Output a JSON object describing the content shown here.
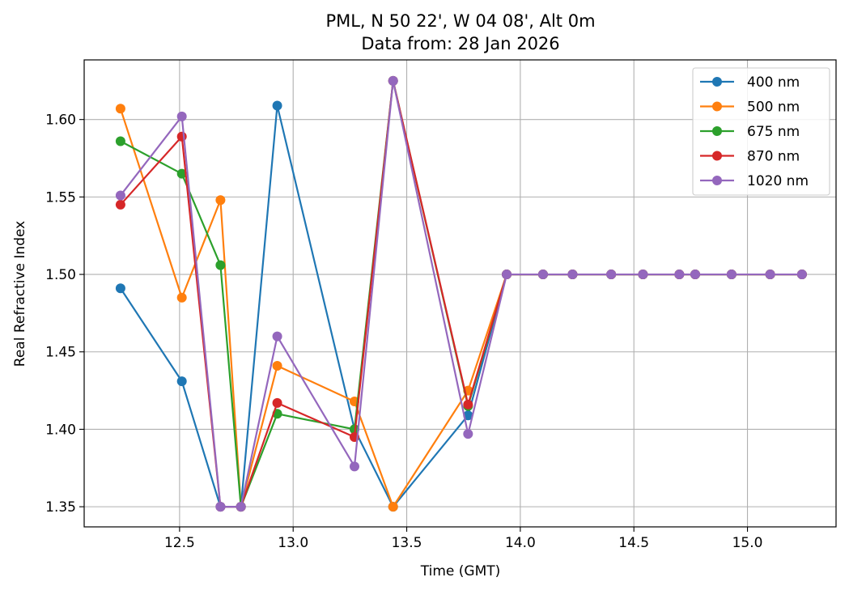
{
  "chart_data": {
    "type": "line",
    "title": "PML, N 50 22', W 04 08', Alt 0m",
    "subtitle": "Data from: 28 Jan 2026",
    "xlabel": "Time (GMT)",
    "ylabel": "Real Refractive Index",
    "xlim": [
      12.08,
      15.39
    ],
    "ylim": [
      1.337,
      1.6385
    ],
    "xticks": [
      12.5,
      13.0,
      13.5,
      14.0,
      14.5,
      15.0
    ],
    "xtick_labels": [
      "12.5",
      "13.0",
      "13.5",
      "14.0",
      "14.5",
      "15.0"
    ],
    "yticks": [
      1.35,
      1.4,
      1.45,
      1.5,
      1.55,
      1.6
    ],
    "ytick_labels": [
      "1.35",
      "1.40",
      "1.45",
      "1.50",
      "1.55",
      "1.60"
    ],
    "grid": true,
    "legend_position": "top-right",
    "x": [
      12.24,
      12.51,
      12.68,
      12.77,
      12.93,
      13.27,
      13.44,
      13.77,
      13.94,
      14.1,
      14.23,
      14.4,
      14.54,
      14.7,
      14.77,
      14.93,
      15.1,
      15.24
    ],
    "series": [
      {
        "name": "400 nm",
        "color": "#1f77b4",
        "values": [
          1.491,
          1.431,
          1.35,
          1.35,
          1.609,
          1.4,
          1.35,
          1.409,
          1.5,
          1.5,
          1.5,
          1.5,
          1.5,
          1.5,
          1.5,
          1.5,
          1.5,
          1.5
        ]
      },
      {
        "name": "500 nm",
        "color": "#ff7f0e",
        "values": [
          1.607,
          1.485,
          1.548,
          1.35,
          1.441,
          1.418,
          1.35,
          1.425,
          1.5,
          1.5,
          1.5,
          1.5,
          1.5,
          1.5,
          1.5,
          1.5,
          1.5,
          1.5
        ]
      },
      {
        "name": "675 nm",
        "color": "#2ca02c",
        "values": [
          1.586,
          1.565,
          1.506,
          1.35,
          1.41,
          1.4,
          1.625,
          1.415,
          1.5,
          1.5,
          1.5,
          1.5,
          1.5,
          1.5,
          1.5,
          1.5,
          1.5,
          1.5
        ]
      },
      {
        "name": "870 nm",
        "color": "#d62728",
        "values": [
          1.545,
          1.589,
          1.35,
          1.35,
          1.417,
          1.395,
          1.625,
          1.416,
          1.5,
          1.5,
          1.5,
          1.5,
          1.5,
          1.5,
          1.5,
          1.5,
          1.5,
          1.5
        ]
      },
      {
        "name": "1020 nm",
        "color": "#9467bd",
        "values": [
          1.551,
          1.602,
          1.35,
          1.35,
          1.46,
          1.376,
          1.625,
          1.397,
          1.5,
          1.5,
          1.5,
          1.5,
          1.5,
          1.5,
          1.5,
          1.5,
          1.5,
          1.5
        ]
      }
    ]
  }
}
